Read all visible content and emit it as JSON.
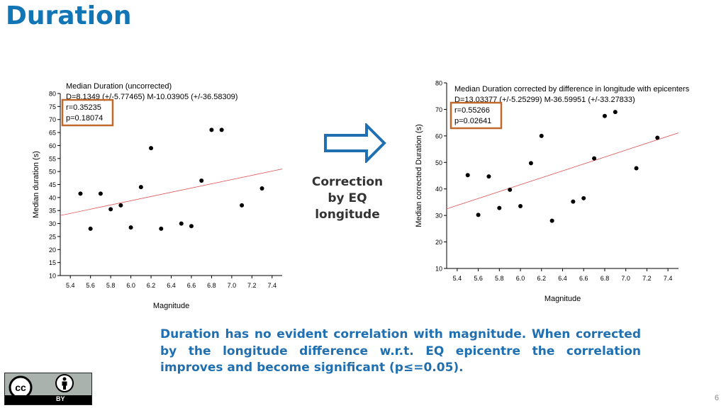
{
  "slide": {
    "title": "Duration",
    "middle_lines": [
      "Correction",
      "by EQ",
      "longitude"
    ],
    "caption": "Duration has no evident correlation with magnitude. When corrected by the longitude difference w.r.t. EQ epicentre the correlation improves and become significant (p≤=0.05).",
    "license_text": "BY",
    "page_number": "6",
    "colors": {
      "title": "#1275b5",
      "caption": "#1f6fb1",
      "highlight_box": "#c0692b",
      "fit_line": "#e05555",
      "arrow": "#1f6fb1"
    }
  },
  "chart_data": [
    {
      "type": "scatter",
      "title": "Median Duration (uncorrected)",
      "fit_text": "D=8.1349 (+/-5.77465) M-10.03905 (+/-36.58309)",
      "stats": [
        "r=0.35235",
        "p=0.18074"
      ],
      "xlabel": "Magnitude",
      "ylabel": "Median duration (s)",
      "xlim": [
        5.3,
        7.5
      ],
      "ylim": [
        10,
        80
      ],
      "xticks": [
        "5.4",
        "5.6",
        "5.8",
        "6.0",
        "6.2",
        "6.4",
        "6.6",
        "6.8",
        "7.0",
        "7.2",
        "7.4"
      ],
      "yticks": [
        "10",
        "15",
        "20",
        "25",
        "30",
        "35",
        "40",
        "45",
        "50",
        "55",
        "60",
        "65",
        "70",
        "75",
        "80"
      ],
      "points": [
        [
          5.5,
          41.5
        ],
        [
          5.6,
          28
        ],
        [
          5.7,
          41.5
        ],
        [
          5.8,
          35.5
        ],
        [
          5.9,
          37
        ],
        [
          6.0,
          28.5
        ],
        [
          6.1,
          44
        ],
        [
          6.2,
          59
        ],
        [
          6.3,
          28
        ],
        [
          6.5,
          30
        ],
        [
          6.6,
          29
        ],
        [
          6.7,
          46.5
        ],
        [
          6.8,
          66
        ],
        [
          6.9,
          66
        ],
        [
          7.1,
          37
        ],
        [
          7.3,
          43.5
        ]
      ],
      "fit": {
        "slope": 8.1349,
        "intercept": -10.03905
      }
    },
    {
      "type": "scatter",
      "title": "Median Duration corrected by difference in longitude with epicenters",
      "fit_text": "D=13.03377 (+/-5.25299) M-36.59951 (+/-33.27833)",
      "stats": [
        "r=0.55266",
        "p=0.02641"
      ],
      "xlabel": "Magnitude",
      "ylabel": "Median corrected  Duration (s)",
      "xlim": [
        5.3,
        7.5
      ],
      "ylim": [
        10,
        80
      ],
      "xticks": [
        "5.4",
        "5.6",
        "5.8",
        "6.0",
        "6.2",
        "6.4",
        "6.6",
        "6.8",
        "7.0",
        "7.2",
        "7.4"
      ],
      "yticks": [
        "10",
        "20",
        "30",
        "40",
        "50",
        "60",
        "70",
        "80"
      ],
      "points": [
        [
          5.5,
          45.2
        ],
        [
          5.6,
          30.2
        ],
        [
          5.7,
          44.7
        ],
        [
          5.8,
          32.8
        ],
        [
          5.9,
          39.7
        ],
        [
          6.0,
          33.5
        ],
        [
          6.1,
          49.7
        ],
        [
          6.2,
          60
        ],
        [
          6.3,
          28
        ],
        [
          6.5,
          35.2
        ],
        [
          6.6,
          36.5
        ],
        [
          6.7,
          51.5
        ],
        [
          6.8,
          67.5
        ],
        [
          6.9,
          69
        ],
        [
          7.1,
          47.8
        ],
        [
          7.3,
          59.3
        ]
      ],
      "fit": {
        "slope": 13.03377,
        "intercept": -36.59951
      }
    }
  ]
}
